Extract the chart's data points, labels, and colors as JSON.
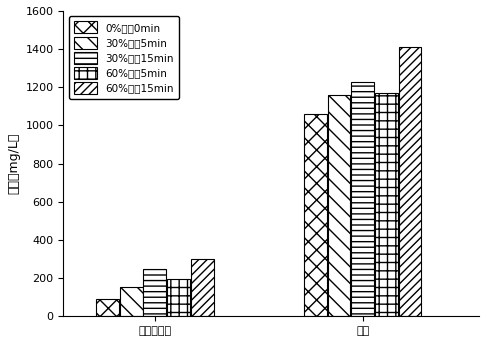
{
  "categories": [
    "化学需氧量",
    "乙酸"
  ],
  "series": [
    {
      "label": "0%功率0min",
      "values": [
        90,
        1060
      ],
      "hatch": "xx",
      "facecolor": "white",
      "edgecolor": "black"
    },
    {
      "label": "30%功率5min",
      "values": [
        155,
        1160
      ],
      "hatch": "bwd",
      "facecolor": "white",
      "edgecolor": "black"
    },
    {
      "label": "30%功率15min",
      "values": [
        250,
        1230
      ],
      "hatch": "hz",
      "facecolor": "white",
      "edgecolor": "black"
    },
    {
      "label": "60%功率5min",
      "values": [
        195,
        1170
      ],
      "hatch": "grid",
      "facecolor": "white",
      "edgecolor": "black"
    },
    {
      "label": "60%功率15min",
      "values": [
        300,
        1410
      ],
      "hatch": "fwd",
      "facecolor": "white",
      "edgecolor": "black"
    }
  ],
  "ylabel": "浓度（mg/L）",
  "ylim": [
    0,
    1600
  ],
  "yticks": [
    0,
    200,
    400,
    600,
    800,
    1000,
    1200,
    1400,
    1600
  ],
  "background_color": "#ffffff",
  "bar_width": 0.055,
  "group_centers": [
    0.22,
    0.72
  ],
  "xlim": [
    0.0,
    1.0
  ]
}
